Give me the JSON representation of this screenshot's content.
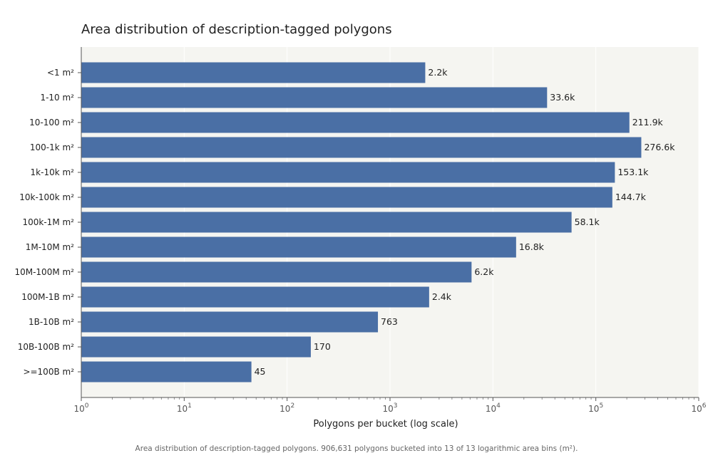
{
  "chart_data": {
    "type": "bar",
    "orientation": "horizontal",
    "title": "Area distribution of description-tagged polygons",
    "xlabel": "Polygons per bucket (log scale)",
    "ylabel": "",
    "x_scale": "log",
    "xlim": [
      1,
      1000000
    ],
    "categories": [
      "<1 m²",
      "1-10 m²",
      "10-100 m²",
      "100-1k m²",
      "1k-10k m²",
      "10k-100k m²",
      "100k-1M m²",
      "1M-10M m²",
      "10M-100M m²",
      "100M-1B m²",
      "1B-10B m²",
      "10B-100B m²",
      ">=100B m²"
    ],
    "values": [
      2200,
      33600,
      211900,
      276600,
      153100,
      144700,
      58100,
      16800,
      6200,
      2400,
      763,
      170,
      45
    ],
    "data_labels": [
      "2.2k",
      "33.6k",
      "211.9k",
      "276.6k",
      "153.1k",
      "144.7k",
      "58.1k",
      "16.8k",
      "6.2k",
      "2.4k",
      "763",
      "170",
      "45"
    ],
    "x_ticks": [
      {
        "base": "10",
        "exp": "0"
      },
      {
        "base": "10",
        "exp": "1"
      },
      {
        "base": "10",
        "exp": "2"
      },
      {
        "base": "10",
        "exp": "3"
      },
      {
        "base": "10",
        "exp": "4"
      },
      {
        "base": "10",
        "exp": "5"
      },
      {
        "base": "10",
        "exp": "6"
      }
    ],
    "grid": "vertical",
    "colors": {
      "bar": "#4a6fa5",
      "plot_background": "#f5f5f1",
      "grid": "#ffffff"
    },
    "caption": "Area distribution of description-tagged polygons. 906,631 polygons bucketed into 13 of 13 logarithmic area bins (m²)."
  }
}
